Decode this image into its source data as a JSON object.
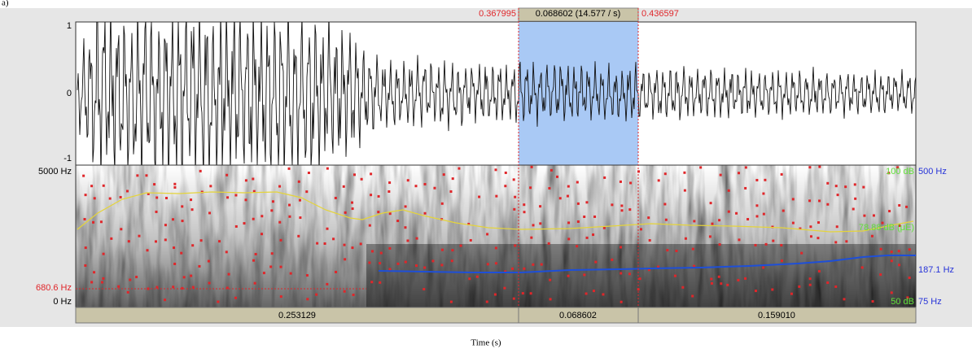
{
  "figure_label": "a)",
  "selection": {
    "start": "0.367995",
    "duration": "0.068602 (14.577 / s)",
    "end": "0.436597"
  },
  "waveform": {
    "axis_labels": [
      "1",
      "0",
      "-1"
    ]
  },
  "spectrogram": {
    "left_labels": {
      "top": "5000 Hz",
      "cursor": "680.6 Hz",
      "bottom": "0 Hz"
    },
    "right_labels": {
      "intensity_top": "100 dB",
      "pitch_top": "500 Hz",
      "intensity_value": "78.88 dB (μE)",
      "pitch_value": "187.1 Hz",
      "intensity_bottom": "50 dB",
      "pitch_bottom": "75 Hz"
    }
  },
  "durations": [
    "0.253129",
    "0.068602",
    "0.159010"
  ],
  "x_axis_label": "Time (s)"
}
